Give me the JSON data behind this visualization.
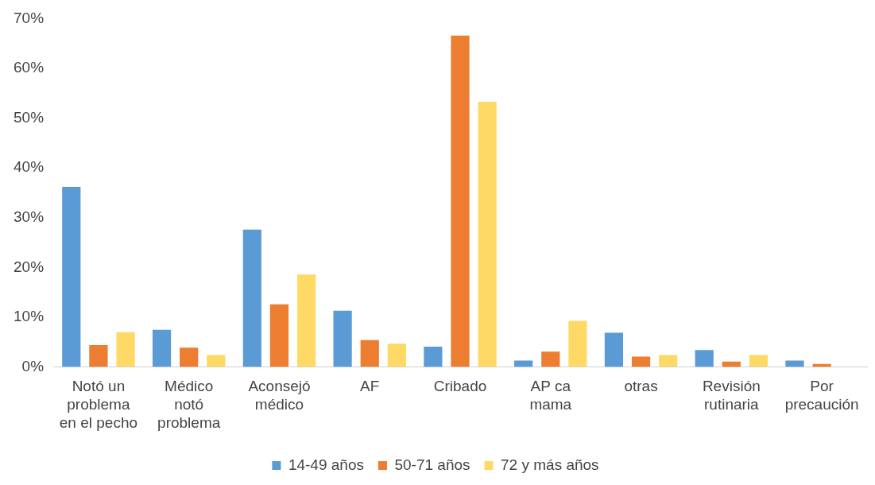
{
  "chart_data": {
    "type": "bar",
    "categories": [
      "Notó un\nproblema\nen el pecho",
      "Médico\nnotó\nproblema",
      "Aconsejó\nmédico",
      "AF",
      "Cribado",
      "AP ca\nmama",
      "otras",
      "Revisión\nrutinaria",
      "Por\nprecaución"
    ],
    "series": [
      {
        "name": "14-49 años",
        "color": "#5b9bd5",
        "values": [
          36.2,
          7.5,
          27.6,
          11.3,
          4.1,
          1.3,
          6.9,
          3.4,
          1.3
        ]
      },
      {
        "name": "50-71 años",
        "color": "#ed7d31",
        "values": [
          4.4,
          3.9,
          12.6,
          5.4,
          66.6,
          3.1,
          2.1,
          1.1,
          0.6
        ]
      },
      {
        "name": "72 y más años",
        "color": "#ffd966",
        "values": [
          7.0,
          2.4,
          18.6,
          4.7,
          53.3,
          9.3,
          2.4,
          2.4,
          null
        ]
      }
    ],
    "ylim": [
      0,
      70
    ],
    "yticks": [
      {
        "value": 0,
        "label": "0%"
      },
      {
        "value": 10,
        "label": "10%"
      },
      {
        "value": 20,
        "label": "20%"
      },
      {
        "value": 30,
        "label": "30%"
      },
      {
        "value": 40,
        "label": "40%"
      },
      {
        "value": 50,
        "label": "50%"
      },
      {
        "value": 60,
        "label": "60%"
      },
      {
        "value": 70,
        "label": "70%"
      }
    ],
    "grid": false,
    "legend": "bottom"
  }
}
